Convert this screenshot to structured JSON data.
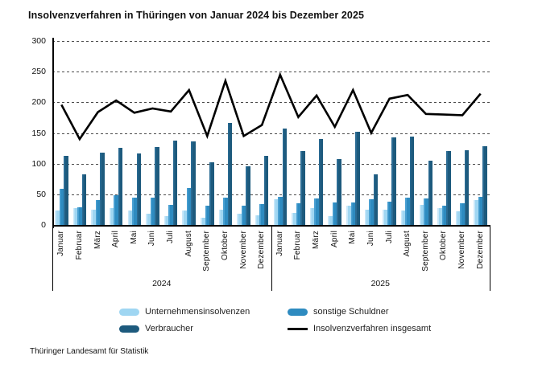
{
  "title": "Insolvenzverfahren in Thüringen von Januar 2024 bis Dezember 2025",
  "footer": "Thüringer Landesamt für Statistik",
  "chart_data": {
    "type": "bar",
    "note": "grouped bar chart (3 bar series) with overlaid total line",
    "title": "Insolvenzverfahren in Thüringen von Januar 2024 bis Dezember 2025",
    "xlabel": "",
    "ylabel": "",
    "ylim": [
      0,
      300
    ],
    "yticks": [
      0,
      50,
      100,
      150,
      200,
      250,
      300
    ],
    "grid": "horizontal dashed",
    "legend_position": "bottom",
    "years": [
      "2024",
      "2025"
    ],
    "months": [
      "Januar",
      "Februar",
      "März",
      "April",
      "Mai",
      "Juni",
      "Juli",
      "August",
      "September",
      "Oktober",
      "November",
      "Dezember"
    ],
    "series": [
      {
        "name": "Unternehmensinsolvenzen",
        "type": "bar",
        "color": "#9fd6f2",
        "values": [
          24,
          28,
          25,
          28,
          23,
          19,
          15,
          24,
          12,
          25,
          18,
          16,
          42,
          20,
          28,
          15,
          31,
          25,
          25,
          23,
          33,
          27,
          22,
          40
        ]
      },
      {
        "name": "sonstige Schuldner",
        "type": "bar",
        "color": "#2e8bc0",
        "values": [
          59,
          29,
          41,
          49,
          44,
          44,
          33,
          60,
          31,
          44,
          32,
          34,
          46,
          35,
          43,
          37,
          37,
          42,
          38,
          45,
          43,
          32,
          35,
          46
        ]
      },
      {
        "name": "Verbraucher",
        "type": "bar",
        "color": "#1d5a7d",
        "values": [
          113,
          83,
          118,
          126,
          116,
          127,
          137,
          136,
          102,
          166,
          95,
          113,
          157,
          121,
          140,
          108,
          152,
          83,
          143,
          144,
          105,
          121,
          122,
          128
        ]
      },
      {
        "name": "Insolvenzverfahren insgesamt",
        "type": "line",
        "color": "#000000",
        "values": [
          196,
          140,
          184,
          203,
          183,
          190,
          185,
          220,
          145,
          235,
          145,
          163,
          245,
          176,
          211,
          160,
          220,
          150,
          206,
          212,
          181,
          180,
          179,
          214
        ]
      }
    ]
  }
}
